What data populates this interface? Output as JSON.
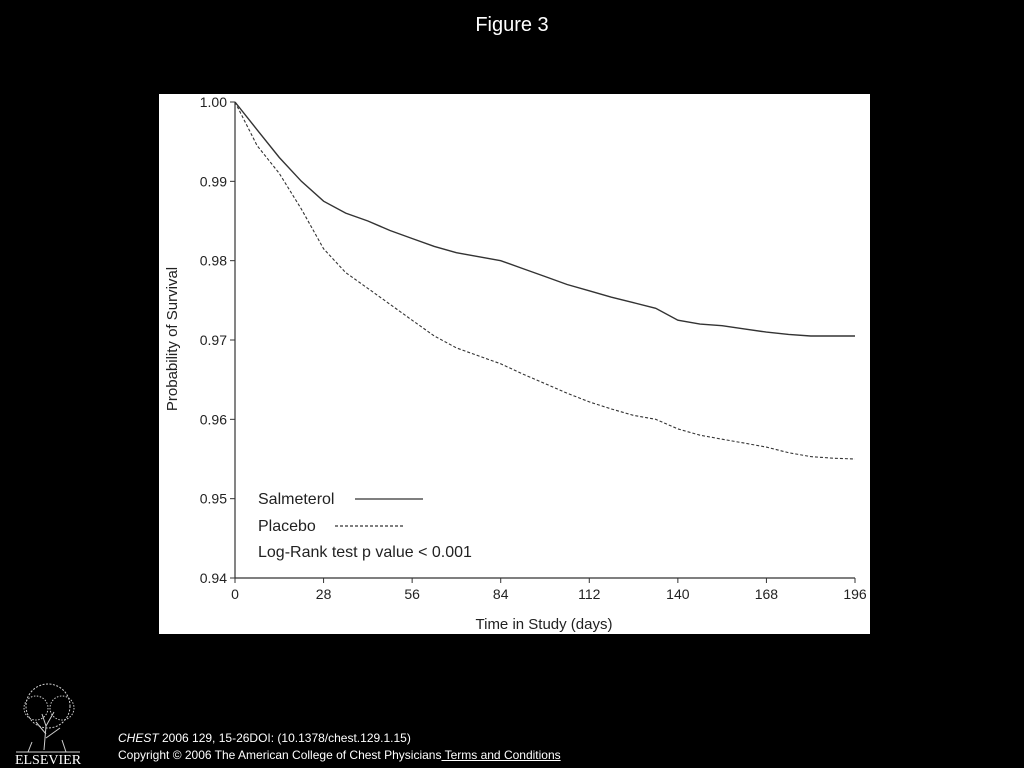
{
  "slide": {
    "title": "Figure 3"
  },
  "citation": {
    "journal": "CHEST",
    "details": " 2006 129, 15-26DOI: (10.1378/chest.129.1.15)",
    "copyright": "Copyright © 2006 The American College of Chest Physicians",
    "terms_link": " Terms and Conditions"
  },
  "publisher": {
    "name": "ELSEVIER"
  },
  "colors": {
    "background": "#000000",
    "panel": "#ffffff",
    "line": "#333333"
  },
  "chart_data": {
    "type": "line",
    "title": "",
    "xlabel": "Time in Study (days)",
    "ylabel": "Probability of Survival",
    "xlim": [
      0,
      196
    ],
    "ylim": [
      0.94,
      1.0
    ],
    "x_ticks": [
      0,
      28,
      56,
      84,
      112,
      140,
      168,
      196
    ],
    "x_tick_labels": [
      "0",
      "28",
      "56",
      "84",
      "112",
      "140",
      "168",
      "196"
    ],
    "y_ticks": [
      0.94,
      0.95,
      0.96,
      0.97,
      0.98,
      0.99,
      1.0
    ],
    "y_tick_labels": [
      "0.94",
      "0.95",
      "0.96",
      "0.97",
      "0.98",
      "0.99",
      "1.00"
    ],
    "grid": false,
    "legend_position": "bottom-left",
    "series": [
      {
        "name": "Salmeterol",
        "style": "solid",
        "x": [
          0,
          7,
          14,
          21,
          28,
          35,
          42,
          49,
          56,
          63,
          70,
          77,
          84,
          91,
          98,
          105,
          112,
          119,
          126,
          133,
          140,
          147,
          154,
          161,
          168,
          175,
          182,
          189,
          196
        ],
        "y": [
          1.0,
          0.9965,
          0.993,
          0.99,
          0.9875,
          0.986,
          0.985,
          0.9838,
          0.9828,
          0.9818,
          0.981,
          0.9805,
          0.98,
          0.979,
          0.978,
          0.977,
          0.9762,
          0.9754,
          0.9747,
          0.974,
          0.9725,
          0.972,
          0.9718,
          0.9714,
          0.971,
          0.9707,
          0.9705,
          0.9705,
          0.9705
        ]
      },
      {
        "name": "Placebo",
        "style": "dashed",
        "x": [
          0,
          7,
          14,
          21,
          28,
          35,
          42,
          49,
          56,
          63,
          70,
          77,
          84,
          91,
          98,
          105,
          112,
          119,
          126,
          133,
          140,
          147,
          154,
          161,
          168,
          175,
          182,
          189,
          196
        ],
        "y": [
          1.0,
          0.9945,
          0.991,
          0.9865,
          0.9815,
          0.9785,
          0.9765,
          0.9745,
          0.9725,
          0.9705,
          0.969,
          0.968,
          0.967,
          0.9657,
          0.9645,
          0.9633,
          0.9622,
          0.9613,
          0.9605,
          0.96,
          0.9588,
          0.958,
          0.9575,
          0.957,
          0.9565,
          0.9558,
          0.9553,
          0.9551,
          0.955
        ]
      }
    ],
    "annotation": "Log-Rank test p value  < 0.001"
  }
}
